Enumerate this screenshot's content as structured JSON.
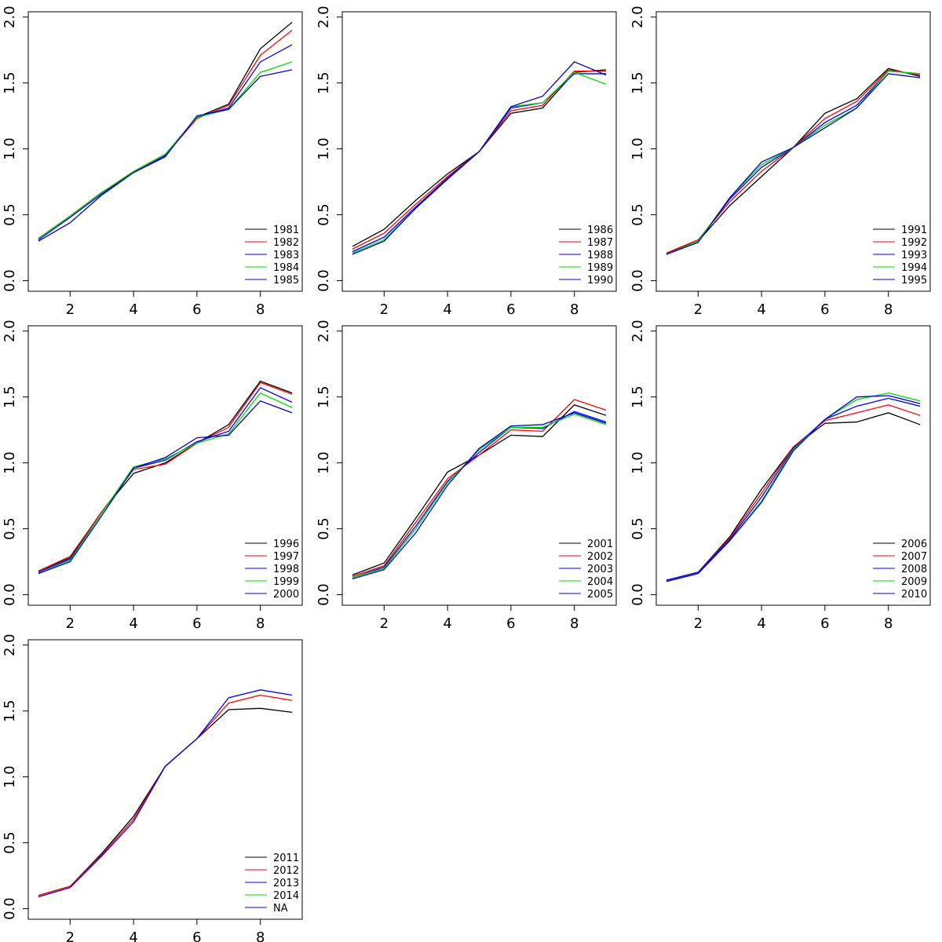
{
  "chart_data": [
    {
      "type": "line",
      "x": [
        1,
        2,
        3,
        4,
        5,
        6,
        7,
        8,
        9
      ],
      "xlim": [
        0.68,
        9.32
      ],
      "ylim": [
        -0.08,
        2.04
      ],
      "xticks": [
        2,
        4,
        6,
        8
      ],
      "yticks": [
        {
          "value": 0,
          "label": "0.0"
        },
        0.5,
        {
          "value": 1,
          "label": "1.0"
        },
        1.5,
        {
          "value": 2,
          "label": "2.0"
        }
      ],
      "legend": "bottomright",
      "series": [
        {
          "name": "1981",
          "color": "#000000",
          "values": [
            0.32,
            0.49,
            0.67,
            0.82,
            0.95,
            1.24,
            1.34,
            1.76,
            1.96
          ]
        },
        {
          "name": "1982",
          "color": "#ff0000",
          "values": [
            0.32,
            0.49,
            0.67,
            0.82,
            0.95,
            1.23,
            1.33,
            1.71,
            1.9
          ]
        },
        {
          "name": "1983",
          "color": "#0000ff",
          "values": [
            0.31,
            0.48,
            0.66,
            0.82,
            0.95,
            1.24,
            1.31,
            1.66,
            1.79
          ]
        },
        {
          "name": "1984",
          "color": "#00dd00",
          "values": [
            0.32,
            0.49,
            0.67,
            0.83,
            0.96,
            1.24,
            1.3,
            1.58,
            1.66
          ]
        },
        {
          "name": "1985",
          "color": "#0000cc",
          "values": [
            0.3,
            0.44,
            0.65,
            0.82,
            0.94,
            1.25,
            1.3,
            1.55,
            1.6
          ]
        }
      ]
    },
    {
      "type": "line",
      "x": [
        1,
        2,
        3,
        4,
        5,
        6,
        7,
        8,
        9
      ],
      "xlim": [
        0.68,
        9.32
      ],
      "ylim": [
        -0.08,
        2.04
      ],
      "xticks": [
        2,
        4,
        6,
        8
      ],
      "yticks": [
        {
          "value": 0,
          "label": "0.0"
        },
        0.5,
        {
          "value": 1,
          "label": "1.0"
        },
        1.5,
        {
          "value": 2,
          "label": "2.0"
        }
      ],
      "legend": "bottomright",
      "series": [
        {
          "name": "1986",
          "color": "#000000",
          "values": [
            0.26,
            0.39,
            0.61,
            0.81,
            0.98,
            1.27,
            1.31,
            1.58,
            1.6
          ]
        },
        {
          "name": "1987",
          "color": "#ff0000",
          "values": [
            0.24,
            0.36,
            0.58,
            0.79,
            0.98,
            1.29,
            1.33,
            1.59,
            1.59
          ]
        },
        {
          "name": "1988",
          "color": "#0000ff",
          "values": [
            0.22,
            0.33,
            0.56,
            0.78,
            0.98,
            1.31,
            1.35,
            1.57,
            1.57
          ]
        },
        {
          "name": "1989",
          "color": "#00dd00",
          "values": [
            0.21,
            0.31,
            0.55,
            0.77,
            0.98,
            1.32,
            1.35,
            1.58,
            1.49
          ]
        },
        {
          "name": "1990",
          "color": "#0000cc",
          "values": [
            0.2,
            0.3,
            0.55,
            0.77,
            0.98,
            1.32,
            1.4,
            1.66,
            1.56
          ]
        }
      ]
    },
    {
      "type": "line",
      "x": [
        1,
        2,
        3,
        4,
        5,
        6,
        7,
        8,
        9
      ],
      "xlim": [
        0.68,
        9.32
      ],
      "ylim": [
        -0.08,
        2.04
      ],
      "xticks": [
        2,
        4,
        6,
        8
      ],
      "yticks": [
        {
          "value": 0,
          "label": "0.0"
        },
        0.5,
        {
          "value": 1,
          "label": "1.0"
        },
        1.5,
        {
          "value": 2,
          "label": "2.0"
        }
      ],
      "legend": "bottomright",
      "series": [
        {
          "name": "1991",
          "color": "#000000",
          "values": [
            0.21,
            0.3,
            0.57,
            0.79,
            1.01,
            1.27,
            1.38,
            1.61,
            1.55
          ]
        },
        {
          "name": "1992",
          "color": "#ff0000",
          "values": [
            0.21,
            0.31,
            0.6,
            0.83,
            1.01,
            1.23,
            1.36,
            1.6,
            1.56
          ]
        },
        {
          "name": "1993",
          "color": "#0000ff",
          "values": [
            0.2,
            0.3,
            0.62,
            0.86,
            1.01,
            1.2,
            1.33,
            1.59,
            1.57
          ]
        },
        {
          "name": "1994",
          "color": "#00dd00",
          "values": [
            0.2,
            0.3,
            0.63,
            0.88,
            1.01,
            1.18,
            1.31,
            1.59,
            1.57
          ]
        },
        {
          "name": "1995",
          "color": "#0000cc",
          "values": [
            0.2,
            0.29,
            0.63,
            0.9,
            1.01,
            1.16,
            1.31,
            1.57,
            1.54
          ]
        }
      ]
    },
    {
      "type": "line",
      "x": [
        1,
        2,
        3,
        4,
        5,
        6,
        7,
        8,
        9
      ],
      "xlim": [
        0.68,
        9.32
      ],
      "ylim": [
        -0.08,
        2.04
      ],
      "xticks": [
        2,
        4,
        6,
        8
      ],
      "yticks": [
        {
          "value": 0,
          "label": "0.0"
        },
        0.5,
        {
          "value": 1,
          "label": "1.0"
        },
        1.5,
        {
          "value": 2,
          "label": "2.0"
        }
      ],
      "legend": "bottomright",
      "series": [
        {
          "name": "1996",
          "color": "#000000",
          "values": [
            0.18,
            0.28,
            0.63,
            0.92,
            1.0,
            1.15,
            1.29,
            1.62,
            1.53
          ]
        },
        {
          "name": "1997",
          "color": "#ff0000",
          "values": [
            0.18,
            0.29,
            0.63,
            0.95,
            0.99,
            1.15,
            1.27,
            1.61,
            1.52
          ]
        },
        {
          "name": "1998",
          "color": "#0000ff",
          "values": [
            0.17,
            0.27,
            0.62,
            0.96,
            1.02,
            1.16,
            1.24,
            1.57,
            1.46
          ]
        },
        {
          "name": "1999",
          "color": "#00dd00",
          "values": [
            0.16,
            0.26,
            0.62,
            0.97,
            1.03,
            1.15,
            1.22,
            1.53,
            1.42
          ]
        },
        {
          "name": "2000",
          "color": "#0000cc",
          "values": [
            0.16,
            0.25,
            0.6,
            0.96,
            1.04,
            1.19,
            1.21,
            1.47,
            1.38
          ]
        }
      ]
    },
    {
      "type": "line",
      "x": [
        1,
        2,
        3,
        4,
        5,
        6,
        7,
        8,
        9
      ],
      "xlim": [
        0.68,
        9.32
      ],
      "ylim": [
        -0.08,
        2.04
      ],
      "xticks": [
        2,
        4,
        6,
        8
      ],
      "yticks": [
        {
          "value": 0,
          "label": "0.0"
        },
        0.5,
        {
          "value": 1,
          "label": "1.0"
        },
        1.5,
        {
          "value": 2,
          "label": "2.0"
        }
      ],
      "legend": "bottomright",
      "series": [
        {
          "name": "2001",
          "color": "#000000",
          "values": [
            0.15,
            0.24,
            0.58,
            0.93,
            1.06,
            1.21,
            1.2,
            1.44,
            1.36
          ]
        },
        {
          "name": "2002",
          "color": "#ff0000",
          "values": [
            0.14,
            0.22,
            0.55,
            0.88,
            1.06,
            1.25,
            1.24,
            1.48,
            1.4
          ]
        },
        {
          "name": "2003",
          "color": "#0000ff",
          "values": [
            0.13,
            0.21,
            0.52,
            0.86,
            1.08,
            1.27,
            1.26,
            1.39,
            1.31
          ]
        },
        {
          "name": "2004",
          "color": "#00dd00",
          "values": [
            0.13,
            0.2,
            0.5,
            0.85,
            1.1,
            1.27,
            1.27,
            1.37,
            1.29
          ]
        },
        {
          "name": "2005",
          "color": "#0000cc",
          "values": [
            0.12,
            0.19,
            0.47,
            0.83,
            1.11,
            1.28,
            1.29,
            1.38,
            1.3
          ]
        }
      ]
    },
    {
      "type": "line",
      "x": [
        1,
        2,
        3,
        4,
        5,
        6,
        7,
        8,
        9
      ],
      "xlim": [
        0.68,
        9.32
      ],
      "ylim": [
        -0.08,
        2.04
      ],
      "xticks": [
        2,
        4,
        6,
        8
      ],
      "yticks": [
        {
          "value": 0,
          "label": "0.0"
        },
        0.5,
        {
          "value": 1,
          "label": "1.0"
        },
        1.5,
        {
          "value": 2,
          "label": "2.0"
        }
      ],
      "legend": "bottomright",
      "series": [
        {
          "name": "2006",
          "color": "#000000",
          "values": [
            0.11,
            0.17,
            0.44,
            0.8,
            1.12,
            1.3,
            1.31,
            1.38,
            1.29
          ]
        },
        {
          "name": "2007",
          "color": "#ff0000",
          "values": [
            0.11,
            0.17,
            0.43,
            0.77,
            1.12,
            1.32,
            1.38,
            1.44,
            1.36
          ]
        },
        {
          "name": "2008",
          "color": "#0000ff",
          "values": [
            0.11,
            0.17,
            0.42,
            0.74,
            1.11,
            1.33,
            1.43,
            1.49,
            1.43
          ]
        },
        {
          "name": "2009",
          "color": "#00dd00",
          "values": [
            0.1,
            0.16,
            0.41,
            0.71,
            1.1,
            1.33,
            1.48,
            1.53,
            1.47
          ]
        },
        {
          "name": "2010",
          "color": "#0000cc",
          "values": [
            0.1,
            0.16,
            0.41,
            0.7,
            1.09,
            1.33,
            1.5,
            1.51,
            1.45
          ]
        }
      ]
    },
    {
      "type": "line",
      "x": [
        1,
        2,
        3,
        4,
        5,
        6,
        7,
        8,
        9
      ],
      "xlim": [
        0.68,
        9.32
      ],
      "ylim": [
        -0.08,
        2.04
      ],
      "xticks": [
        2,
        4,
        6,
        8
      ],
      "yticks": [
        {
          "value": 0,
          "label": "0.0"
        },
        0.5,
        {
          "value": 1,
          "label": "1.0"
        },
        1.5,
        {
          "value": 2,
          "label": "2.0"
        }
      ],
      "legend": "bottomright",
      "series": [
        {
          "name": "2011",
          "color": "#000000",
          "values": [
            0.1,
            0.17,
            0.42,
            0.7,
            1.08,
            1.29,
            1.51,
            1.52,
            1.49
          ]
        },
        {
          "name": "2012",
          "color": "#ff0000",
          "values": [
            0.1,
            0.17,
            0.41,
            0.68,
            1.08,
            1.29,
            1.56,
            1.62,
            1.58
          ]
        },
        {
          "name": "2013",
          "color": "#0000ff",
          "values": [
            0.09,
            0.16,
            0.4,
            0.66,
            1.08,
            1.29,
            1.6,
            1.66,
            1.62
          ]
        },
        {
          "name": "2014",
          "color": "#00dd00",
          "values": [
            null,
            null,
            null,
            null,
            null,
            null,
            null,
            null,
            null
          ]
        },
        {
          "name": "NA",
          "color": "#0000cc",
          "values": [
            null,
            null,
            null,
            null,
            null,
            null,
            null,
            null,
            null
          ]
        }
      ]
    }
  ]
}
